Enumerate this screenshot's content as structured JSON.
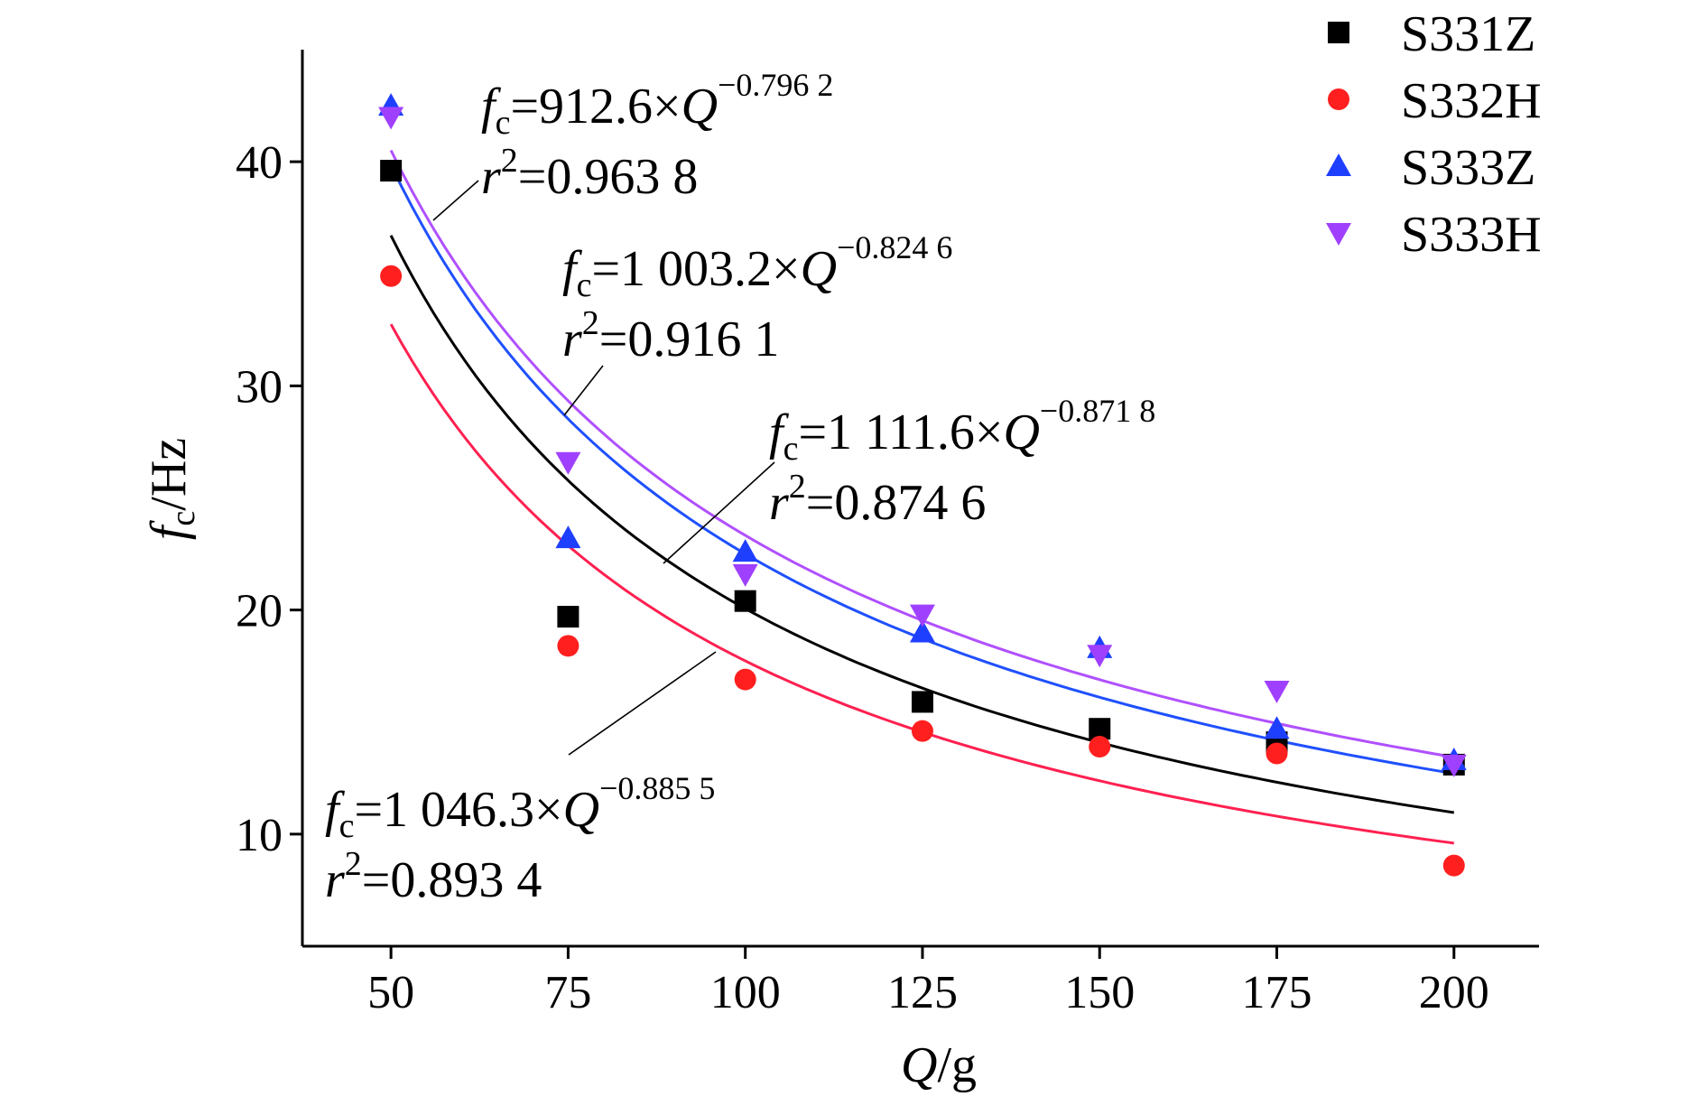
{
  "chart_data": {
    "type": "scatter",
    "xlabel": {
      "italic": "Q",
      "rest": "/g"
    },
    "ylabel": {
      "italic": "f",
      "sub": "c",
      "rest": "/Hz"
    },
    "xlim": [
      37.5,
      212
    ],
    "ylim": [
      5,
      45
    ],
    "xticks": [
      50,
      75,
      100,
      125,
      150,
      175,
      200
    ],
    "yticks": [
      10,
      20,
      30,
      40
    ],
    "grid": false,
    "legend_position": "top-right",
    "series": [
      {
        "name": "S331Z",
        "marker": "square",
        "color": "#000000",
        "x": [
          50,
          75,
          100,
          125,
          150,
          175,
          200
        ],
        "y": [
          39.6,
          19.7,
          20.4,
          15.9,
          14.7,
          14.1,
          13.1
        ],
        "fit": {
          "a": 1111.6,
          "b": -0.8718,
          "r2": 0.8746,
          "color": "#000000"
        }
      },
      {
        "name": "S332H",
        "marker": "circle",
        "color": "#ff1f1f",
        "x": [
          50,
          75,
          100,
          125,
          150,
          175,
          200
        ],
        "y": [
          34.9,
          18.4,
          16.9,
          14.6,
          13.9,
          13.6,
          8.6
        ],
        "fit": {
          "a": 1046.3,
          "b": -0.8855,
          "r2": 0.8934,
          "color": "#ff2050"
        }
      },
      {
        "name": "S333Z",
        "marker": "triangle-up",
        "color": "#1f3fff",
        "x": [
          50,
          75,
          100,
          125,
          150,
          175,
          200
        ],
        "y": [
          42.5,
          23.2,
          22.6,
          19.0,
          18.3,
          14.7,
          13.3
        ],
        "fit": {
          "a": 1003.2,
          "b": -0.8246,
          "r2": 0.9161,
          "color": "#1f50ff"
        }
      },
      {
        "name": "S333H",
        "marker": "triangle-down",
        "color": "#a040ff",
        "x": [
          50,
          75,
          100,
          125,
          150,
          175,
          200
        ],
        "y": [
          42.0,
          26.6,
          21.6,
          19.8,
          18.0,
          16.4,
          13.1
        ],
        "fit": {
          "a": 912.6,
          "b": -0.7962,
          "r2": 0.9638,
          "color": "#b050ff"
        }
      }
    ],
    "annotations": [
      {
        "coef": "912.6",
        "exp": "−0.796 2",
        "r2": "0.963 8",
        "series": "S333H"
      },
      {
        "coef": "1 003.2",
        "exp": "−0.824 6",
        "r2": "0.916 1",
        "series": "S333Z"
      },
      {
        "coef": "1 111.6",
        "exp": "−0.871 8",
        "r2": "0.874 6",
        "series": "S331Z"
      },
      {
        "coef": "1 046.3",
        "exp": "−0.885 5",
        "r2": "0.893 4",
        "series": "S332H"
      }
    ],
    "equation_symbols": {
      "f": "f",
      "sub": "c",
      "eq": "=",
      "times": "×",
      "Q": "Q",
      "r": "r",
      "two": "2"
    }
  }
}
